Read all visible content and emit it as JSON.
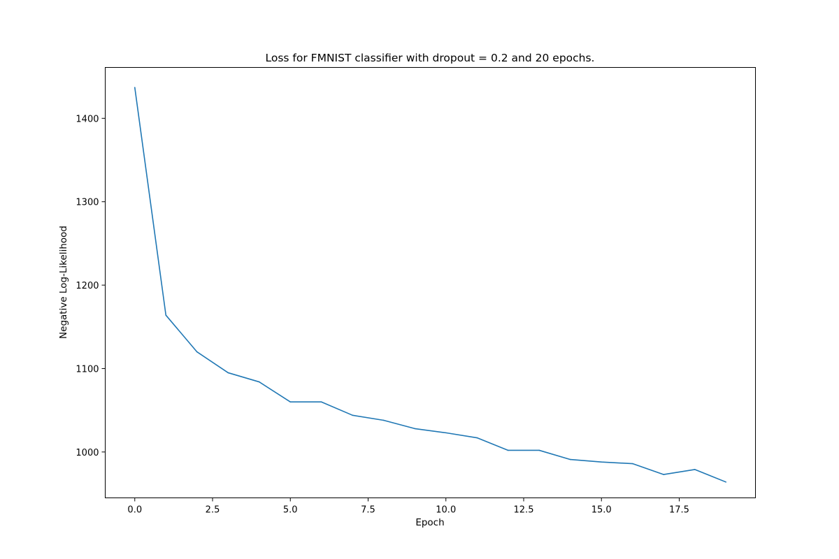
{
  "chart_data": {
    "type": "line",
    "title": "Loss for FMNIST classifier with dropout = 0.2 and 20 epochs.",
    "xlabel": "Epoch",
    "ylabel": "Negative Log-Likelihood",
    "xlim": [
      -0.95,
      19.95
    ],
    "ylim": [
      945,
      1461
    ],
    "x_ticks": [
      0.0,
      2.5,
      5.0,
      7.5,
      10.0,
      12.5,
      15.0,
      17.5
    ],
    "x_tick_labels": [
      "0.0",
      "2.5",
      "5.0",
      "7.5",
      "10.0",
      "12.5",
      "15.0",
      "17.5"
    ],
    "y_ticks": [
      1000,
      1100,
      1200,
      1300,
      1400
    ],
    "y_tick_labels": [
      "1000",
      "1100",
      "1200",
      "1300",
      "1400"
    ],
    "grid": false,
    "series": [
      {
        "color": "#1f77b4",
        "x": [
          0,
          1,
          2,
          3,
          4,
          5,
          6,
          7,
          8,
          9,
          10,
          11,
          12,
          13,
          14,
          15,
          16,
          17,
          18,
          19
        ],
        "values": [
          1437,
          1164,
          1120,
          1095,
          1084,
          1060,
          1060,
          1044,
          1038,
          1028,
          1023,
          1017,
          1002,
          1002,
          991,
          988,
          986,
          973,
          979,
          964
        ]
      }
    ]
  }
}
